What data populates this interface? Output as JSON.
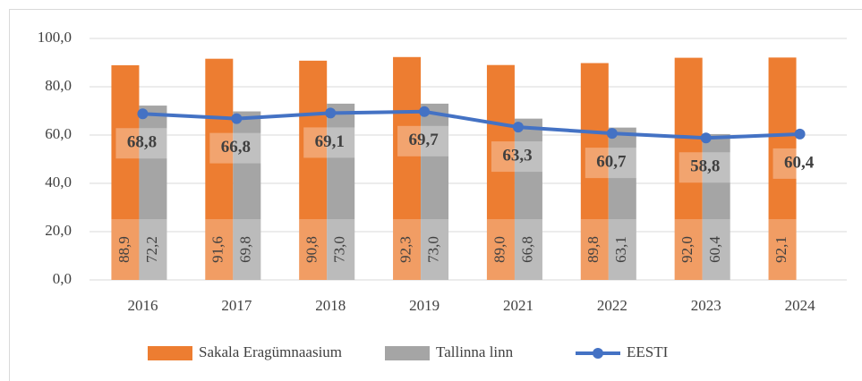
{
  "chart_data": {
    "type": "bar",
    "categories": [
      "2016",
      "2017",
      "2018",
      "2019",
      "2021",
      "2022",
      "2023",
      "2024"
    ],
    "series": [
      {
        "name": "Sakala Eragümnaasium",
        "color": "#ed7d31",
        "type": "bar",
        "values": [
          88.9,
          91.6,
          90.8,
          92.3,
          89.0,
          89.8,
          92.0,
          92.1
        ],
        "value_labels": [
          "88,9",
          "91,6",
          "90,8",
          "92,3",
          "89,0",
          "89,8",
          "92,0",
          "92,1"
        ]
      },
      {
        "name": "Tallinna linn",
        "color": "#a5a5a5",
        "type": "bar",
        "values": [
          72.2,
          69.8,
          73.0,
          73.0,
          66.8,
          63.1,
          60.4,
          null
        ],
        "value_labels": [
          "72,2",
          "69,8",
          "73,0",
          "73,0",
          "66,8",
          "63,1",
          "60,4",
          null
        ]
      },
      {
        "name": "EESTI",
        "color": "#4472c4",
        "type": "line",
        "values": [
          68.8,
          66.8,
          69.1,
          69.7,
          63.3,
          60.7,
          58.8,
          60.4
        ],
        "value_labels": [
          "68,8",
          "66,8",
          "69,1",
          "69,7",
          "63,3",
          "60,7",
          "58,8",
          "60,4"
        ]
      }
    ],
    "ylim": [
      0,
      100
    ],
    "yticks": [
      {
        "value": 0,
        "label": "0,0"
      },
      {
        "value": 20,
        "label": "20,0"
      },
      {
        "value": 40,
        "label": "40,0"
      },
      {
        "value": 60,
        "label": "60,0"
      },
      {
        "value": 80,
        "label": "80,0"
      },
      {
        "value": 100,
        "label": "100,0"
      }
    ],
    "grid": true,
    "legend": "bottom"
  }
}
